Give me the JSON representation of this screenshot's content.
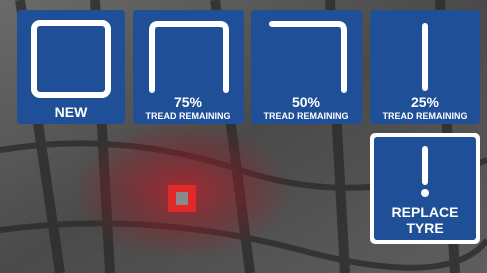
{
  "tiles": [
    {
      "label": "NEW"
    },
    {
      "percent": "75%",
      "caption": "TREAD REMAINING"
    },
    {
      "percent": "50%",
      "caption": "TREAD REMAINING"
    },
    {
      "percent": "25%",
      "caption": "TREAD REMAINING"
    }
  ],
  "warning": {
    "lines": [
      "REPLACE",
      "TYRE"
    ]
  }
}
